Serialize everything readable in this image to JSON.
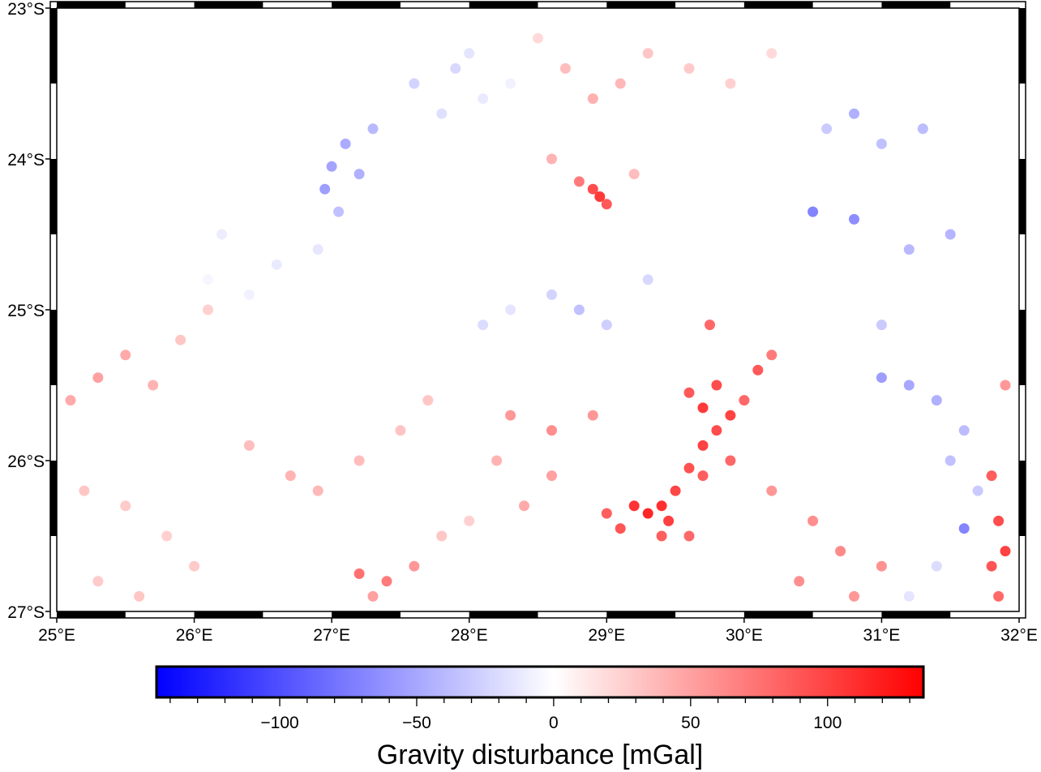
{
  "map": {
    "region": {
      "lon_min": 25,
      "lon_max": 32,
      "lat_min": -27,
      "lat_max": -23
    },
    "lon_ticks": [
      {
        "value": 25,
        "label": "25°E"
      },
      {
        "value": 26,
        "label": "26°E"
      },
      {
        "value": 27,
        "label": "27°E"
      },
      {
        "value": 28,
        "label": "28°E"
      },
      {
        "value": 29,
        "label": "29°E"
      },
      {
        "value": 30,
        "label": "30°E"
      },
      {
        "value": 31,
        "label": "31°E"
      },
      {
        "value": 32,
        "label": "32°E"
      }
    ],
    "lat_ticks": [
      {
        "value": -23,
        "label": "23°S"
      },
      {
        "value": -24,
        "label": "24°S"
      },
      {
        "value": -25,
        "label": "25°S"
      },
      {
        "value": -26,
        "label": "26°S"
      },
      {
        "value": -27,
        "label": "27°S"
      }
    ],
    "frame_style": "plain black-and-white fancy frame"
  },
  "colorbar": {
    "label": "Gravity disturbance [mGal]",
    "range": [
      -145,
      135
    ],
    "colors": {
      "low": "#0000ff",
      "mid": "#ffffff",
      "high": "#ff0000"
    },
    "tick_labels": [
      {
        "value": -100,
        "label": "−100"
      },
      {
        "value": -50,
        "label": "−50"
      },
      {
        "value": 0,
        "label": "0"
      },
      {
        "value": 50,
        "label": "50"
      },
      {
        "value": 100,
        "label": "100"
      }
    ],
    "minor_tick_step": 10
  },
  "chart_data": {
    "type": "scatter",
    "title": "",
    "xlabel": "",
    "ylabel": "",
    "xlim": [
      25,
      32
    ],
    "ylim": [
      -27,
      -23
    ],
    "value_label": "Gravity disturbance [mGal]",
    "color_scale": "polar (blue-white-red)",
    "series": [
      {
        "points": [
          [
            27.0,
            -24.05,
            -52
          ],
          [
            27.1,
            -23.9,
            -48
          ],
          [
            27.2,
            -24.1,
            -45
          ],
          [
            26.95,
            -24.2,
            -55
          ],
          [
            27.3,
            -23.8,
            -40
          ],
          [
            27.05,
            -24.35,
            -35
          ],
          [
            27.6,
            -23.5,
            -25
          ],
          [
            27.9,
            -23.4,
            -22
          ],
          [
            27.8,
            -23.7,
            -18
          ],
          [
            28.1,
            -23.6,
            -12
          ],
          [
            28.0,
            -23.3,
            -15
          ],
          [
            28.3,
            -23.5,
            -8
          ],
          [
            28.5,
            -23.2,
            20
          ],
          [
            28.7,
            -23.4,
            35
          ],
          [
            28.9,
            -23.6,
            42
          ],
          [
            29.1,
            -23.5,
            38
          ],
          [
            29.3,
            -23.3,
            30
          ],
          [
            29.6,
            -23.4,
            28
          ],
          [
            28.9,
            -24.2,
            95
          ],
          [
            28.95,
            -24.25,
            105
          ],
          [
            28.8,
            -24.15,
            70
          ],
          [
            29.0,
            -24.3,
            88
          ],
          [
            28.6,
            -24.0,
            40
          ],
          [
            29.2,
            -24.1,
            35
          ],
          [
            29.9,
            -23.5,
            25
          ],
          [
            30.2,
            -23.3,
            20
          ],
          [
            30.6,
            -23.8,
            -30
          ],
          [
            30.8,
            -23.7,
            -45
          ],
          [
            31.0,
            -23.9,
            -35
          ],
          [
            31.3,
            -23.8,
            -38
          ],
          [
            30.8,
            -24.4,
            -65
          ],
          [
            30.5,
            -24.35,
            -70
          ],
          [
            31.2,
            -24.6,
            -40
          ],
          [
            31.5,
            -24.5,
            -42
          ],
          [
            31.0,
            -25.1,
            -30
          ],
          [
            31.0,
            -25.45,
            -55
          ],
          [
            31.2,
            -25.5,
            -50
          ],
          [
            31.4,
            -25.6,
            -45
          ],
          [
            31.6,
            -25.8,
            -38
          ],
          [
            31.5,
            -26.0,
            -35
          ],
          [
            31.6,
            -26.45,
            -70
          ],
          [
            31.7,
            -26.2,
            -30
          ],
          [
            31.4,
            -26.7,
            -20
          ],
          [
            31.2,
            -26.9,
            -15
          ],
          [
            26.2,
            -24.5,
            -10
          ],
          [
            26.6,
            -24.7,
            -12
          ],
          [
            26.9,
            -24.6,
            -14
          ],
          [
            26.4,
            -24.9,
            -8
          ],
          [
            26.1,
            -24.8,
            -5
          ],
          [
            28.1,
            -25.1,
            -20
          ],
          [
            28.3,
            -25.0,
            -15
          ],
          [
            28.6,
            -24.9,
            -25
          ],
          [
            28.8,
            -25.0,
            -35
          ],
          [
            29.0,
            -25.1,
            -28
          ],
          [
            29.3,
            -24.8,
            -22
          ],
          [
            29.8,
            -25.5,
            95
          ],
          [
            29.7,
            -25.65,
            105
          ],
          [
            29.9,
            -25.7,
            100
          ],
          [
            29.8,
            -25.8,
            95
          ],
          [
            30.0,
            -25.6,
            80
          ],
          [
            29.6,
            -25.55,
            88
          ],
          [
            29.7,
            -25.9,
            100
          ],
          [
            29.6,
            -26.05,
            92
          ],
          [
            29.5,
            -26.2,
            98
          ],
          [
            29.4,
            -26.3,
            110
          ],
          [
            29.3,
            -26.35,
            115
          ],
          [
            29.2,
            -26.3,
            108
          ],
          [
            29.45,
            -26.4,
            102
          ],
          [
            29.1,
            -26.45,
            90
          ],
          [
            29.0,
            -26.35,
            85
          ],
          [
            29.7,
            -26.1,
            85
          ],
          [
            29.9,
            -26.0,
            80
          ],
          [
            30.1,
            -25.4,
            88
          ],
          [
            30.2,
            -25.3,
            70
          ],
          [
            29.75,
            -25.1,
            80
          ],
          [
            29.4,
            -26.5,
            85
          ],
          [
            29.6,
            -26.5,
            80
          ],
          [
            25.1,
            -25.6,
            45
          ],
          [
            25.3,
            -25.45,
            50
          ],
          [
            25.5,
            -25.3,
            45
          ],
          [
            25.7,
            -25.5,
            40
          ],
          [
            25.9,
            -25.2,
            30
          ],
          [
            26.1,
            -25.0,
            25
          ],
          [
            25.2,
            -26.2,
            30
          ],
          [
            25.5,
            -26.3,
            28
          ],
          [
            25.8,
            -26.5,
            25
          ],
          [
            26.0,
            -26.7,
            28
          ],
          [
            25.6,
            -26.9,
            30
          ],
          [
            25.3,
            -26.8,
            28
          ],
          [
            26.4,
            -25.9,
            35
          ],
          [
            26.7,
            -26.1,
            40
          ],
          [
            26.9,
            -26.2,
            38
          ],
          [
            27.2,
            -26.0,
            35
          ],
          [
            27.5,
            -25.8,
            32
          ],
          [
            27.7,
            -25.6,
            30
          ],
          [
            27.2,
            -26.75,
            75
          ],
          [
            27.4,
            -26.8,
            70
          ],
          [
            27.6,
            -26.7,
            55
          ],
          [
            27.3,
            -26.9,
            50
          ],
          [
            27.8,
            -26.5,
            30
          ],
          [
            28.0,
            -26.4,
            25
          ],
          [
            28.3,
            -25.7,
            55
          ],
          [
            28.6,
            -25.8,
            60
          ],
          [
            28.9,
            -25.7,
            55
          ],
          [
            28.6,
            -26.1,
            50
          ],
          [
            28.4,
            -26.3,
            45
          ],
          [
            28.2,
            -26.0,
            40
          ],
          [
            30.2,
            -26.2,
            55
          ],
          [
            30.5,
            -26.4,
            60
          ],
          [
            30.7,
            -26.6,
            62
          ],
          [
            31.0,
            -26.7,
            58
          ],
          [
            30.8,
            -26.9,
            55
          ],
          [
            30.4,
            -26.8,
            60
          ],
          [
            31.8,
            -26.1,
            85
          ],
          [
            31.85,
            -26.4,
            95
          ],
          [
            31.8,
            -26.7,
            90
          ],
          [
            31.85,
            -26.9,
            80
          ],
          [
            31.9,
            -25.5,
            55
          ],
          [
            31.9,
            -26.6,
            100
          ]
        ]
      }
    ]
  }
}
